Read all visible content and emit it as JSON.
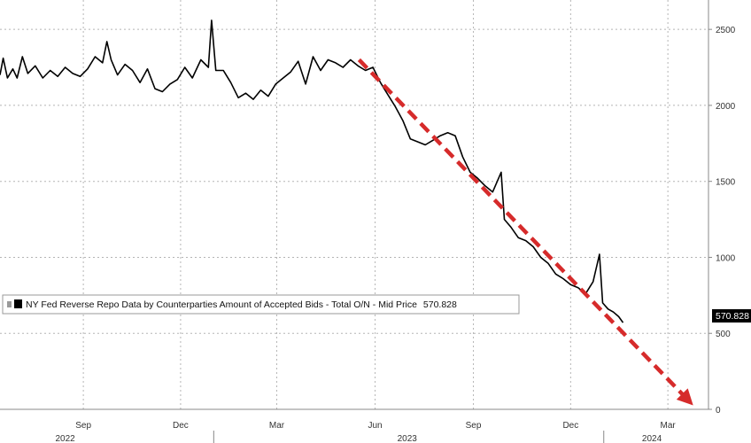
{
  "chart_data": {
    "type": "line",
    "y_axis_side": "right",
    "ylim": [
      0,
      2600
    ],
    "y_ticks": [
      0,
      500,
      1000,
      1500,
      2000,
      2500
    ],
    "x_month_ticks": [
      {
        "label": "Sep",
        "date": "2022-09-01"
      },
      {
        "label": "Dec",
        "date": "2022-12-01"
      },
      {
        "label": "Mar",
        "date": "2023-03-01"
      },
      {
        "label": "Jun",
        "date": "2023-06-01"
      },
      {
        "label": "Sep",
        "date": "2023-09-01"
      },
      {
        "label": "Dec",
        "date": "2023-12-01"
      },
      {
        "label": "Mar",
        "date": "2024-03-01"
      }
    ],
    "x_year_labels": [
      {
        "label": "2022",
        "date": "2022-08-15"
      },
      {
        "label": "2023",
        "date": "2023-07-01"
      },
      {
        "label": "2024",
        "date": "2024-02-15"
      }
    ],
    "year_boundaries": [
      "2023-01-01",
      "2024-01-01"
    ],
    "grid": true,
    "series": [
      {
        "name": "NY Fed Reverse Repo Data by Counterparties Amount of Accepted Bids - Total O/N - Mid Price",
        "last_value": "570.828",
        "color": "#000000",
        "points": [
          [
            "2022-06-15",
            2200
          ],
          [
            "2022-06-18",
            2310
          ],
          [
            "2022-06-22",
            2180
          ],
          [
            "2022-06-27",
            2240
          ],
          [
            "2022-07-01",
            2180
          ],
          [
            "2022-07-06",
            2320
          ],
          [
            "2022-07-11",
            2210
          ],
          [
            "2022-07-18",
            2260
          ],
          [
            "2022-07-25",
            2180
          ],
          [
            "2022-08-01",
            2230
          ],
          [
            "2022-08-08",
            2190
          ],
          [
            "2022-08-15",
            2250
          ],
          [
            "2022-08-22",
            2210
          ],
          [
            "2022-08-29",
            2190
          ],
          [
            "2022-09-05",
            2240
          ],
          [
            "2022-09-12",
            2320
          ],
          [
            "2022-09-19",
            2280
          ],
          [
            "2022-09-23",
            2420
          ],
          [
            "2022-09-27",
            2300
          ],
          [
            "2022-10-03",
            2200
          ],
          [
            "2022-10-10",
            2270
          ],
          [
            "2022-10-17",
            2230
          ],
          [
            "2022-10-24",
            2150
          ],
          [
            "2022-10-31",
            2240
          ],
          [
            "2022-11-07",
            2110
          ],
          [
            "2022-11-14",
            2090
          ],
          [
            "2022-11-21",
            2140
          ],
          [
            "2022-11-28",
            2170
          ],
          [
            "2022-12-05",
            2250
          ],
          [
            "2022-12-12",
            2180
          ],
          [
            "2022-12-20",
            2300
          ],
          [
            "2022-12-27",
            2250
          ],
          [
            "2022-12-30",
            2560
          ],
          [
            "2023-01-03",
            2230
          ],
          [
            "2023-01-10",
            2230
          ],
          [
            "2023-01-17",
            2150
          ],
          [
            "2023-01-24",
            2050
          ],
          [
            "2023-01-31",
            2080
          ],
          [
            "2023-02-07",
            2040
          ],
          [
            "2023-02-14",
            2100
          ],
          [
            "2023-02-21",
            2060
          ],
          [
            "2023-02-28",
            2140
          ],
          [
            "2023-03-07",
            2180
          ],
          [
            "2023-03-14",
            2220
          ],
          [
            "2023-03-21",
            2290
          ],
          [
            "2023-03-28",
            2140
          ],
          [
            "2023-04-04",
            2320
          ],
          [
            "2023-04-11",
            2230
          ],
          [
            "2023-04-18",
            2300
          ],
          [
            "2023-04-25",
            2280
          ],
          [
            "2023-05-02",
            2250
          ],
          [
            "2023-05-09",
            2300
          ],
          [
            "2023-05-16",
            2260
          ],
          [
            "2023-05-23",
            2230
          ],
          [
            "2023-05-30",
            2250
          ],
          [
            "2023-06-06",
            2150
          ],
          [
            "2023-06-13",
            2070
          ],
          [
            "2023-06-20",
            1990
          ],
          [
            "2023-06-27",
            1900
          ],
          [
            "2023-07-04",
            1780
          ],
          [
            "2023-07-11",
            1760
          ],
          [
            "2023-07-18",
            1740
          ],
          [
            "2023-07-25",
            1770
          ],
          [
            "2023-08-01",
            1800
          ],
          [
            "2023-08-08",
            1820
          ],
          [
            "2023-08-15",
            1800
          ],
          [
            "2023-08-22",
            1660
          ],
          [
            "2023-08-29",
            1560
          ],
          [
            "2023-09-05",
            1520
          ],
          [
            "2023-09-12",
            1470
          ],
          [
            "2023-09-19",
            1430
          ],
          [
            "2023-09-27",
            1560
          ],
          [
            "2023-09-30",
            1250
          ],
          [
            "2023-10-06",
            1200
          ],
          [
            "2023-10-13",
            1130
          ],
          [
            "2023-10-20",
            1110
          ],
          [
            "2023-10-27",
            1070
          ],
          [
            "2023-11-03",
            1000
          ],
          [
            "2023-11-10",
            960
          ],
          [
            "2023-11-17",
            890
          ],
          [
            "2023-11-24",
            860
          ],
          [
            "2023-12-01",
            820
          ],
          [
            "2023-12-08",
            800
          ],
          [
            "2023-12-15",
            760
          ],
          [
            "2023-12-22",
            840
          ],
          [
            "2023-12-28",
            1020
          ],
          [
            "2023-12-31",
            700
          ],
          [
            "2024-01-05",
            660
          ],
          [
            "2024-01-10",
            640
          ],
          [
            "2024-01-15",
            610
          ],
          [
            "2024-01-19",
            570.828
          ]
        ]
      }
    ],
    "trend_arrow": {
      "color": "#d62b2b",
      "start": [
        "2023-05-17",
        2300
      ],
      "end": [
        "2024-03-20",
        60
      ]
    }
  }
}
